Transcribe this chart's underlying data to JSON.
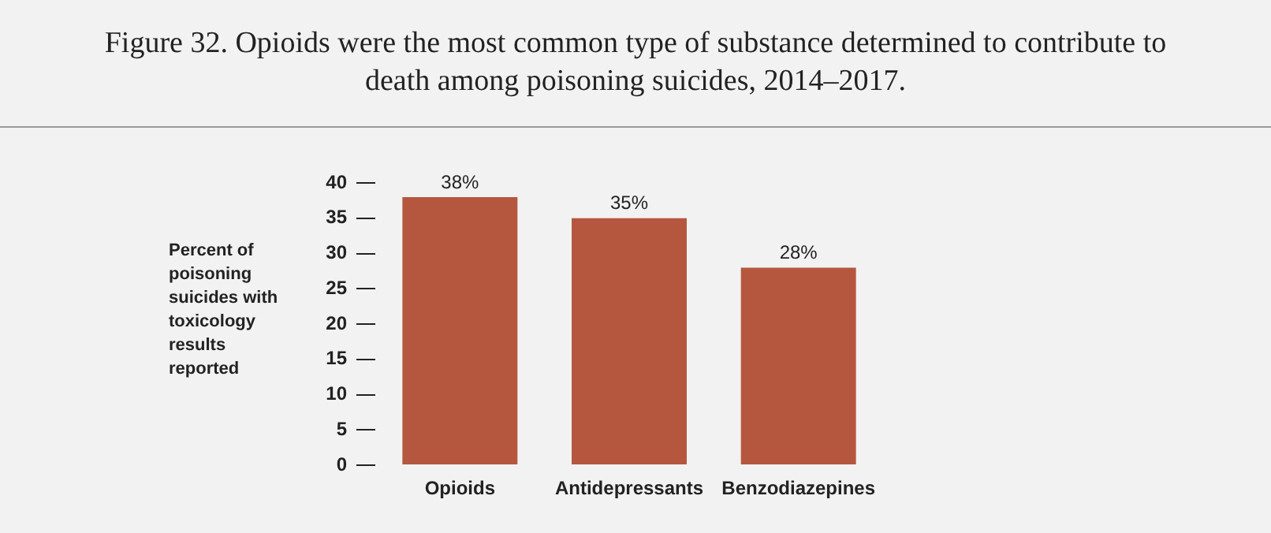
{
  "chart_data": {
    "type": "bar",
    "title": "Figure 32. Opioids were the most common type of substance determined to contribute to death among poisoning suicides, 2014–2017.",
    "ylabel": "Percent of poisoning suicides with toxicology results reported",
    "categories": [
      "Opioids",
      "Antidepressants",
      "Benzodiazepines"
    ],
    "values": [
      38,
      35,
      28
    ],
    "value_labels": [
      "38%",
      "35%",
      "28%"
    ],
    "color": "#b5573e",
    "ylim": [
      0,
      40
    ],
    "yticks": [
      0,
      5,
      10,
      15,
      20,
      25,
      30,
      35,
      40
    ],
    "grid": false,
    "legend": false
  }
}
